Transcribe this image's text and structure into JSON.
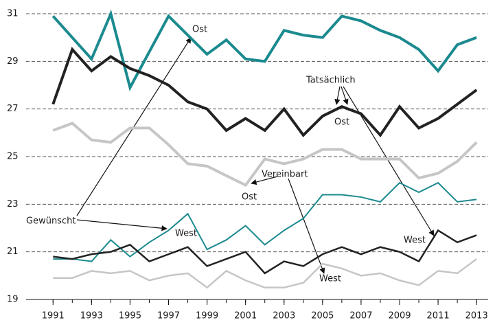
{
  "chart_data": {
    "type": "line",
    "x": [
      1991,
      1992,
      1993,
      1994,
      1995,
      1996,
      1997,
      1998,
      1999,
      2000,
      2001,
      2002,
      2003,
      2004,
      2005,
      2006,
      2007,
      2008,
      2009,
      2010,
      2011,
      2012,
      2013
    ],
    "series": [
      {
        "color": "#1b8a8f",
        "values": [
          30.9,
          30.0,
          29.1,
          31.0,
          27.9,
          29.4,
          30.9,
          30.1,
          29.3,
          29.9,
          29.1,
          29.0,
          30.3,
          30.1,
          30.0,
          30.9,
          30.7,
          30.3,
          30.0,
          29.5,
          28.6,
          29.7,
          30.0
        ]
      },
      {
        "color": "#222222",
        "values": [
          27.2,
          29.5,
          28.6,
          29.2,
          28.7,
          28.4,
          28.0,
          27.3,
          27.0,
          26.1,
          26.6,
          26.1,
          27.0,
          25.9,
          26.7,
          27.1,
          26.8,
          25.9,
          27.1,
          26.2,
          26.6,
          27.2,
          27.8
        ]
      },
      {
        "color": "#c6c6c6",
        "values": [
          26.1,
          26.4,
          25.7,
          25.6,
          26.2,
          26.2,
          25.5,
          24.7,
          24.6,
          24.2,
          23.8,
          24.9,
          24.7,
          24.9,
          25.3,
          25.3,
          24.9,
          24.9,
          24.9,
          24.1,
          24.3,
          24.8,
          25.6
        ]
      },
      {
        "color": "#1b8a8f",
        "values": [
          20.7,
          20.7,
          20.6,
          21.5,
          20.8,
          21.4,
          21.9,
          22.6,
          21.1,
          21.5,
          22.1,
          21.3,
          21.9,
          22.4,
          23.4,
          23.4,
          23.3,
          23.1,
          23.9,
          23.5,
          23.9,
          23.1,
          23.2
        ]
      },
      {
        "color": "#222222",
        "values": [
          20.8,
          20.7,
          20.9,
          21.0,
          21.3,
          20.6,
          20.9,
          21.2,
          20.4,
          20.7,
          21.0,
          20.1,
          20.6,
          20.4,
          20.9,
          21.2,
          20.9,
          21.2,
          21.0,
          20.6,
          21.9,
          21.4,
          21.7
        ]
      },
      {
        "color": "#c6c6c6",
        "values": [
          19.9,
          19.9,
          20.2,
          20.1,
          20.2,
          19.8,
          20.0,
          20.1,
          19.5,
          20.2,
          19.8,
          19.5,
          19.5,
          19.7,
          20.5,
          20.3,
          20.0,
          20.1,
          19.8,
          19.6,
          20.2,
          20.1,
          20.7
        ]
      }
    ],
    "annotations": [
      "Ost",
      "Tatsächlich",
      "Ost",
      "Vereinbart",
      "Ost",
      "Gewünscht",
      "West",
      "West",
      "West"
    ],
    "xlim": [
      1989.6,
      2013.6
    ],
    "xticks": [
      1991,
      1993,
      1995,
      1997,
      1999,
      2001,
      2003,
      2005,
      2007,
      2009,
      2011,
      2013
    ],
    "ylim": [
      19,
      31
    ],
    "yticks": [
      19,
      21,
      23,
      25,
      27,
      29,
      31
    ],
    "grid": true
  }
}
